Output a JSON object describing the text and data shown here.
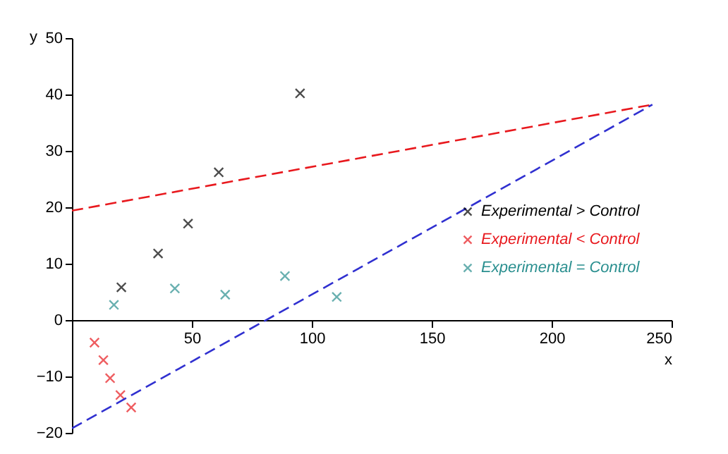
{
  "chart_data": {
    "type": "scatter",
    "xlabel": "x",
    "ylabel": "y",
    "xlim": [
      0,
      250
    ],
    "ylim": [
      -20,
      50
    ],
    "xticks": [
      {
        "value": 0,
        "label": null
      },
      50,
      100,
      150,
      200,
      250
    ],
    "yticks": [
      -20,
      -10,
      0,
      10,
      20,
      30,
      40,
      50
    ],
    "grid": false,
    "legend": "right",
    "series": [
      {
        "name": "Experimental > Control",
        "color": "#000000",
        "marker": "cross",
        "x": [
          20.6,
          35.9,
          48.4,
          61.2,
          95.1
        ],
        "values": [
          5.8,
          11.8,
          17.1,
          26.2,
          40.2
        ]
      },
      {
        "name": "Experimental < Control",
        "color": "#e8191e",
        "marker": "cross",
        "x": [
          9.4,
          13.1,
          15.9,
          20.2,
          24.7
        ],
        "values": [
          -4,
          -7.1,
          -10.3,
          -13.3,
          -15.5
        ]
      },
      {
        "name": "Experimental = Control",
        "color": "#2a8f8f",
        "marker": "cross",
        "x": [
          17.5,
          42.9,
          63.9,
          88.8,
          110.4
        ],
        "values": [
          2.7,
          5.6,
          4.5,
          7.8,
          4.1
        ]
      },
      {
        "type": "line",
        "color": "#e8191e",
        "line_style": "dashed",
        "marker": "none",
        "x": [
          0,
          242
        ],
        "values": [
          19.4,
          38.2
        ]
      },
      {
        "type": "line",
        "color": "#3030d0",
        "line_style": "dashed",
        "marker": "none",
        "x": [
          0,
          242
        ],
        "values": [
          -19.2,
          38.2
        ]
      }
    ]
  }
}
